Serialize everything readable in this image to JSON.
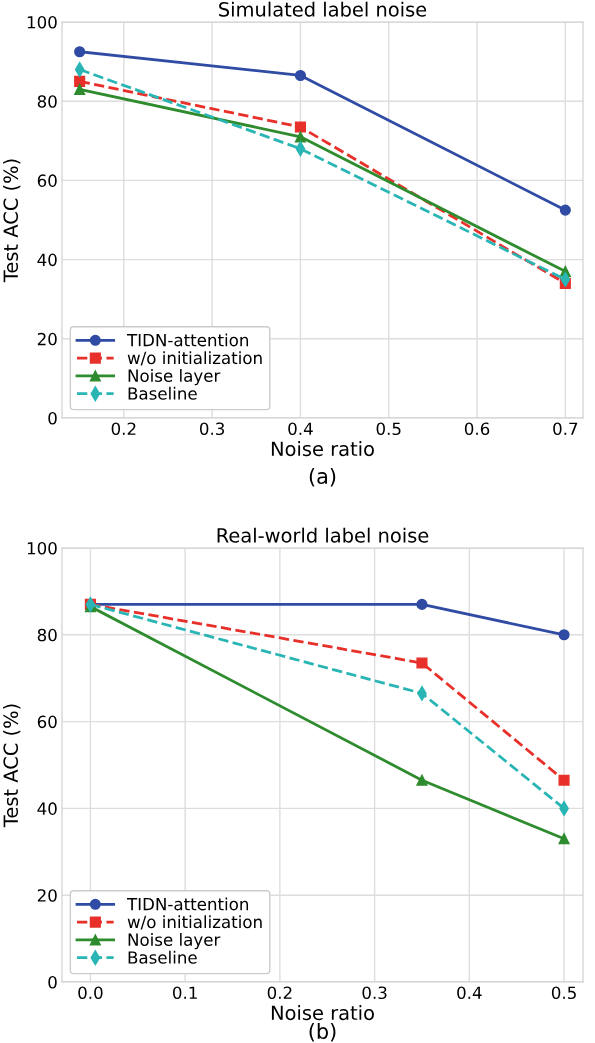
{
  "chart_data": [
    {
      "type": "line",
      "title": "Simulated label noise",
      "xlabel": "Noise ratio",
      "ylabel": "Test ACC (%)",
      "annotations": [
        "(a)"
      ],
      "x": [
        0.15,
        0.4,
        0.7
      ],
      "xlim": [
        0.13,
        0.72
      ],
      "xticks": [
        0.2,
        0.3,
        0.4,
        0.5,
        0.6,
        0.7
      ],
      "ylim": [
        0,
        100
      ],
      "yticks": [
        0,
        20,
        40,
        60,
        80,
        100
      ],
      "grid": true,
      "legend": "bottom left",
      "series": [
        {
          "name": "TIDN-attention",
          "color": "#2f4ba3",
          "marker": "circle",
          "line_style": "solid",
          "values": [
            92.5,
            86.5,
            52.5
          ]
        },
        {
          "name": "w/o initialization",
          "color": "#e8302a",
          "marker": "square",
          "line_style": "dashed",
          "values": [
            85,
            73.5,
            34
          ]
        },
        {
          "name": "Noise layer",
          "color": "#2e8b2e",
          "marker": "triangle",
          "line_style": "solid",
          "values": [
            83,
            71,
            37
          ]
        },
        {
          "name": "Baseline",
          "color": "#2ab5b5",
          "marker": "diamond",
          "line_style": "dashed",
          "values": [
            88,
            68,
            35
          ]
        }
      ]
    },
    {
      "type": "line",
      "title": "Real-world label noise",
      "xlabel": "Noise ratio",
      "ylabel": "Test ACC (%)",
      "annotations": [
        "(b)"
      ],
      "x": [
        0.0,
        0.35,
        0.5
      ],
      "xlim": [
        -0.03,
        0.52
      ],
      "xticks": [
        {
          "value": 0,
          "label": "0.0"
        },
        0.1,
        0.2,
        0.3,
        0.4,
        0.5
      ],
      "ylim": [
        0,
        100
      ],
      "yticks": [
        0,
        20,
        40,
        60,
        80,
        100
      ],
      "grid": true,
      "legend": "bottom left",
      "series": [
        {
          "name": "TIDN-attention",
          "color": "#2f4ba3",
          "marker": "circle",
          "line_style": "solid",
          "values": [
            87,
            87,
            80
          ]
        },
        {
          "name": "w/o initialization",
          "color": "#e8302a",
          "marker": "square",
          "line_style": "dashed",
          "values": [
            87,
            73.5,
            46.5
          ]
        },
        {
          "name": "Noise layer",
          "color": "#2e8b2e",
          "marker": "triangle",
          "line_style": "solid",
          "values": [
            86.5,
            46.5,
            33
          ]
        },
        {
          "name": "Baseline",
          "color": "#2ab5b5",
          "marker": "diamond",
          "line_style": "dashed",
          "values": [
            87,
            66.5,
            40
          ]
        }
      ]
    }
  ]
}
